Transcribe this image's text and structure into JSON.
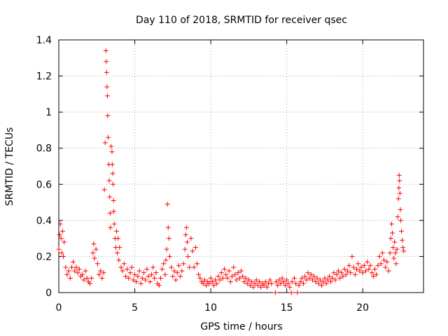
{
  "chart_data": {
    "type": "scatter",
    "title": "Day 110 of 2018, SRMTID for receiver qsec",
    "xlabel": "GPS time / hours",
    "ylabel": "SRMTID / TECUs",
    "xlim": [
      0,
      24
    ],
    "ylim": [
      0,
      1.4
    ],
    "x_ticks": [
      0,
      5,
      10,
      15,
      20
    ],
    "x_tick_labels": [
      "0",
      "5",
      "10",
      "15",
      "20"
    ],
    "y_ticks": [
      0,
      0.2,
      0.4,
      0.6,
      0.8,
      1.0,
      1.2,
      1.4
    ],
    "y_tick_labels": [
      "0",
      "0.2",
      "0.4",
      "0.6",
      "0.8",
      "1",
      "1.2",
      "1.4"
    ],
    "grid": true,
    "marker": "+",
    "color": "#ff0000",
    "series": [
      {
        "name": "SRMTID",
        "points": [
          [
            0.0,
            0.24
          ],
          [
            0.05,
            0.32
          ],
          [
            0.1,
            0.38
          ],
          [
            0.15,
            0.3
          ],
          [
            0.2,
            0.22
          ],
          [
            0.25,
            0.34
          ],
          [
            0.3,
            0.2
          ],
          [
            0.35,
            0.28
          ],
          [
            0.45,
            0.14
          ],
          [
            0.55,
            0.1
          ],
          [
            0.65,
            0.12
          ],
          [
            0.75,
            0.08
          ],
          [
            0.85,
            0.14
          ],
          [
            0.95,
            0.17
          ],
          [
            1.05,
            0.12
          ],
          [
            1.15,
            0.14
          ],
          [
            1.25,
            0.11
          ],
          [
            1.35,
            0.13
          ],
          [
            1.45,
            0.09
          ],
          [
            1.55,
            0.1
          ],
          [
            1.65,
            0.07
          ],
          [
            1.75,
            0.12
          ],
          [
            1.85,
            0.08
          ],
          [
            1.95,
            0.06
          ],
          [
            2.05,
            0.05
          ],
          [
            2.15,
            0.08
          ],
          [
            2.25,
            0.22
          ],
          [
            2.3,
            0.27
          ],
          [
            2.35,
            0.19
          ],
          [
            2.45,
            0.24
          ],
          [
            2.55,
            0.16
          ],
          [
            2.65,
            0.1
          ],
          [
            2.75,
            0.12
          ],
          [
            2.85,
            0.08
          ],
          [
            2.95,
            0.11
          ],
          [
            3.0,
            0.57
          ],
          [
            3.05,
            0.83
          ],
          [
            3.1,
            1.34
          ],
          [
            3.12,
            1.28
          ],
          [
            3.15,
            1.22
          ],
          [
            3.17,
            1.14
          ],
          [
            3.2,
            1.09
          ],
          [
            3.22,
            0.98
          ],
          [
            3.25,
            0.86
          ],
          [
            3.3,
            0.71
          ],
          [
            3.32,
            0.62
          ],
          [
            3.35,
            0.53
          ],
          [
            3.38,
            0.44
          ],
          [
            3.4,
            0.36
          ],
          [
            3.45,
            0.81
          ],
          [
            3.5,
            0.78
          ],
          [
            3.52,
            0.71
          ],
          [
            3.55,
            0.66
          ],
          [
            3.57,
            0.6
          ],
          [
            3.6,
            0.51
          ],
          [
            3.62,
            0.45
          ],
          [
            3.65,
            0.38
          ],
          [
            3.7,
            0.3
          ],
          [
            3.75,
            0.25
          ],
          [
            3.8,
            0.34
          ],
          [
            3.85,
            0.22
          ],
          [
            3.9,
            0.3
          ],
          [
            3.95,
            0.18
          ],
          [
            4.0,
            0.25
          ],
          [
            4.1,
            0.14
          ],
          [
            4.2,
            0.12
          ],
          [
            4.3,
            0.16
          ],
          [
            4.4,
            0.09
          ],
          [
            4.5,
            0.13
          ],
          [
            4.6,
            0.08
          ],
          [
            4.7,
            0.11
          ],
          [
            4.8,
            0.14
          ],
          [
            4.9,
            0.07
          ],
          [
            5.0,
            0.1
          ],
          [
            5.1,
            0.06
          ],
          [
            5.2,
            0.09
          ],
          [
            5.3,
            0.12
          ],
          [
            5.4,
            0.05
          ],
          [
            5.5,
            0.08
          ],
          [
            5.6,
            0.11
          ],
          [
            5.7,
            0.07
          ],
          [
            5.8,
            0.13
          ],
          [
            5.9,
            0.09
          ],
          [
            6.0,
            0.06
          ],
          [
            6.1,
            0.1
          ],
          [
            6.2,
            0.14
          ],
          [
            6.3,
            0.08
          ],
          [
            6.4,
            0.11
          ],
          [
            6.5,
            0.05
          ],
          [
            6.6,
            0.04
          ],
          [
            6.7,
            0.08
          ],
          [
            6.8,
            0.13
          ],
          [
            6.9,
            0.16
          ],
          [
            7.0,
            0.1
          ],
          [
            7.05,
            0.18
          ],
          [
            7.1,
            0.24
          ],
          [
            7.15,
            0.49
          ],
          [
            7.2,
            0.36
          ],
          [
            7.25,
            0.3
          ],
          [
            7.3,
            0.2
          ],
          [
            7.4,
            0.14
          ],
          [
            7.5,
            0.09
          ],
          [
            7.6,
            0.12
          ],
          [
            7.7,
            0.07
          ],
          [
            7.8,
            0.11
          ],
          [
            7.9,
            0.15
          ],
          [
            8.0,
            0.09
          ],
          [
            8.1,
            0.12
          ],
          [
            8.2,
            0.16
          ],
          [
            8.3,
            0.24
          ],
          [
            8.35,
            0.32
          ],
          [
            8.4,
            0.36
          ],
          [
            8.45,
            0.28
          ],
          [
            8.5,
            0.2
          ],
          [
            8.6,
            0.14
          ],
          [
            8.7,
            0.3
          ],
          [
            8.8,
            0.23
          ],
          [
            8.9,
            0.14
          ],
          [
            9.0,
            0.25
          ],
          [
            9.1,
            0.16
          ],
          [
            9.2,
            0.1
          ],
          [
            9.3,
            0.08
          ],
          [
            9.4,
            0.06
          ],
          [
            9.5,
            0.05
          ],
          [
            9.6,
            0.07
          ],
          [
            9.7,
            0.04
          ],
          [
            9.8,
            0.06
          ],
          [
            9.9,
            0.05
          ],
          [
            10.0,
            0.08
          ],
          [
            10.1,
            0.06
          ],
          [
            10.2,
            0.04
          ],
          [
            10.3,
            0.07
          ],
          [
            10.4,
            0.05
          ],
          [
            10.5,
            0.09
          ],
          [
            10.6,
            0.07
          ],
          [
            10.7,
            0.11
          ],
          [
            10.8,
            0.08
          ],
          [
            10.9,
            0.13
          ],
          [
            11.0,
            0.1
          ],
          [
            11.1,
            0.08
          ],
          [
            11.2,
            0.12
          ],
          [
            11.3,
            0.06
          ],
          [
            11.4,
            0.09
          ],
          [
            11.5,
            0.14
          ],
          [
            11.6,
            0.1
          ],
          [
            11.7,
            0.07
          ],
          [
            11.8,
            0.11
          ],
          [
            11.9,
            0.08
          ],
          [
            12.0,
            0.12
          ],
          [
            12.1,
            0.09
          ],
          [
            12.2,
            0.06
          ],
          [
            12.3,
            0.08
          ],
          [
            12.4,
            0.05
          ],
          [
            12.5,
            0.07
          ],
          [
            12.6,
            0.04
          ],
          [
            12.7,
            0.06
          ],
          [
            12.8,
            0.03
          ],
          [
            12.9,
            0.05
          ],
          [
            13.0,
            0.07
          ],
          [
            13.1,
            0.04
          ],
          [
            13.2,
            0.06
          ],
          [
            13.3,
            0.03
          ],
          [
            13.4,
            0.05
          ],
          [
            13.5,
            0.04
          ],
          [
            13.6,
            0.06
          ],
          [
            13.7,
            0.03
          ],
          [
            13.8,
            0.05
          ],
          [
            13.9,
            0.07
          ],
          [
            14.0,
            0.05
          ],
          [
            14.25,
            0.0
          ],
          [
            14.3,
            0.06
          ],
          [
            14.4,
            0.04
          ],
          [
            14.5,
            0.07
          ],
          [
            14.6,
            0.05
          ],
          [
            14.7,
            0.08
          ],
          [
            14.8,
            0.06
          ],
          [
            14.9,
            0.04
          ],
          [
            15.0,
            0.07
          ],
          [
            15.1,
            0.05
          ],
          [
            15.2,
            0.03
          ],
          [
            15.3,
            0.0
          ],
          [
            15.35,
            0.06
          ],
          [
            15.5,
            0.08
          ],
          [
            15.6,
            0.05
          ],
          [
            15.7,
            0.0
          ],
          [
            15.8,
            0.04
          ],
          [
            15.9,
            0.06
          ],
          [
            16.0,
            0.08
          ],
          [
            16.1,
            0.05
          ],
          [
            16.2,
            0.09
          ],
          [
            16.3,
            0.07
          ],
          [
            16.4,
            0.11
          ],
          [
            16.5,
            0.08
          ],
          [
            16.6,
            0.1
          ],
          [
            16.7,
            0.07
          ],
          [
            16.8,
            0.09
          ],
          [
            16.9,
            0.06
          ],
          [
            17.0,
            0.08
          ],
          [
            17.1,
            0.05
          ],
          [
            17.2,
            0.07
          ],
          [
            17.3,
            0.04
          ],
          [
            17.4,
            0.06
          ],
          [
            17.5,
            0.08
          ],
          [
            17.6,
            0.05
          ],
          [
            17.7,
            0.07
          ],
          [
            17.8,
            0.09
          ],
          [
            17.9,
            0.06
          ],
          [
            18.0,
            0.08
          ],
          [
            18.1,
            0.11
          ],
          [
            18.2,
            0.07
          ],
          [
            18.3,
            0.1
          ],
          [
            18.4,
            0.12
          ],
          [
            18.5,
            0.08
          ],
          [
            18.6,
            0.11
          ],
          [
            18.7,
            0.09
          ],
          [
            18.8,
            0.13
          ],
          [
            18.9,
            0.1
          ],
          [
            19.0,
            0.12
          ],
          [
            19.1,
            0.15
          ],
          [
            19.2,
            0.11
          ],
          [
            19.3,
            0.2
          ],
          [
            19.4,
            0.14
          ],
          [
            19.5,
            0.1
          ],
          [
            19.6,
            0.13
          ],
          [
            19.7,
            0.16
          ],
          [
            19.8,
            0.12
          ],
          [
            19.9,
            0.14
          ],
          [
            20.0,
            0.11
          ],
          [
            20.1,
            0.15
          ],
          [
            20.2,
            0.12
          ],
          [
            20.3,
            0.17
          ],
          [
            20.4,
            0.13
          ],
          [
            20.5,
            0.15
          ],
          [
            20.6,
            0.11
          ],
          [
            20.7,
            0.09
          ],
          [
            20.8,
            0.13
          ],
          [
            20.9,
            0.1
          ],
          [
            21.0,
            0.15
          ],
          [
            21.1,
            0.2
          ],
          [
            21.2,
            0.16
          ],
          [
            21.3,
            0.22
          ],
          [
            21.4,
            0.18
          ],
          [
            21.5,
            0.14
          ],
          [
            21.6,
            0.17
          ],
          [
            21.7,
            0.12
          ],
          [
            21.8,
            0.22
          ],
          [
            21.85,
            0.3
          ],
          [
            21.9,
            0.38
          ],
          [
            21.95,
            0.33
          ],
          [
            22.0,
            0.25
          ],
          [
            22.05,
            0.19
          ],
          [
            22.1,
            0.28
          ],
          [
            22.15,
            0.22
          ],
          [
            22.2,
            0.16
          ],
          [
            22.25,
            0.24
          ],
          [
            22.3,
            0.42
          ],
          [
            22.35,
            0.52
          ],
          [
            22.38,
            0.58
          ],
          [
            22.4,
            0.65
          ],
          [
            22.42,
            0.62
          ],
          [
            22.45,
            0.55
          ],
          [
            22.48,
            0.46
          ],
          [
            22.5,
            0.4
          ],
          [
            22.55,
            0.34
          ],
          [
            22.6,
            0.29
          ],
          [
            22.65,
            0.25
          ],
          [
            22.7,
            0.23
          ]
        ]
      }
    ]
  }
}
